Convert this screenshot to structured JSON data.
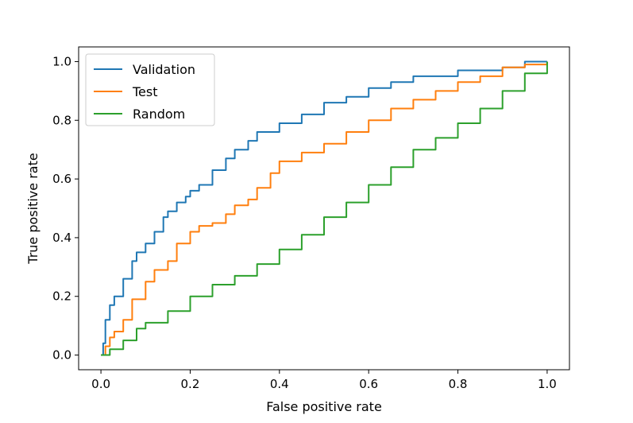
{
  "chart_data": {
    "type": "line",
    "title": "",
    "xlabel": "False positive rate",
    "ylabel": "True positive rate",
    "xlim": [
      -0.05,
      1.05
    ],
    "ylim": [
      -0.05,
      1.05
    ],
    "xticks": [
      0.0,
      0.2,
      0.4,
      0.6,
      0.8,
      1.0
    ],
    "xtick_labels": [
      "0.0",
      "0.2",
      "0.4",
      "0.6",
      "0.8",
      "1.0"
    ],
    "yticks": [
      0.0,
      0.2,
      0.4,
      0.6,
      0.8,
      1.0
    ],
    "ytick_labels": [
      "0.0",
      "0.2",
      "0.4",
      "0.6",
      "0.8",
      "1.0"
    ],
    "grid": false,
    "legend": "upper-left",
    "series": [
      {
        "name": "Validation",
        "color": "#1f77b4",
        "x": [
          0.0,
          0.005,
          0.01,
          0.02,
          0.03,
          0.05,
          0.07,
          0.08,
          0.1,
          0.12,
          0.14,
          0.15,
          0.17,
          0.19,
          0.2,
          0.22,
          0.25,
          0.28,
          0.3,
          0.33,
          0.35,
          0.4,
          0.45,
          0.5,
          0.55,
          0.6,
          0.65,
          0.7,
          0.75,
          0.8,
          0.85,
          0.9,
          0.95,
          1.0
        ],
        "y": [
          0.0,
          0.04,
          0.12,
          0.17,
          0.2,
          0.26,
          0.32,
          0.35,
          0.38,
          0.42,
          0.47,
          0.49,
          0.52,
          0.54,
          0.56,
          0.58,
          0.63,
          0.67,
          0.7,
          0.73,
          0.76,
          0.79,
          0.82,
          0.86,
          0.88,
          0.91,
          0.93,
          0.95,
          0.95,
          0.97,
          0.97,
          0.98,
          1.0,
          1.0
        ]
      },
      {
        "name": "Test",
        "color": "#ff7f0e",
        "x": [
          0.0,
          0.01,
          0.02,
          0.03,
          0.05,
          0.07,
          0.1,
          0.12,
          0.15,
          0.17,
          0.2,
          0.22,
          0.25,
          0.28,
          0.3,
          0.33,
          0.35,
          0.38,
          0.4,
          0.45,
          0.5,
          0.55,
          0.6,
          0.65,
          0.7,
          0.75,
          0.8,
          0.85,
          0.9,
          0.95,
          1.0
        ],
        "y": [
          0.0,
          0.03,
          0.06,
          0.08,
          0.12,
          0.19,
          0.25,
          0.29,
          0.32,
          0.38,
          0.42,
          0.44,
          0.45,
          0.48,
          0.51,
          0.53,
          0.57,
          0.62,
          0.66,
          0.69,
          0.72,
          0.76,
          0.8,
          0.84,
          0.87,
          0.9,
          0.93,
          0.95,
          0.98,
          0.99,
          1.0
        ]
      },
      {
        "name": "Random",
        "color": "#2ca02c",
        "x": [
          0.0,
          0.02,
          0.05,
          0.08,
          0.1,
          0.15,
          0.2,
          0.25,
          0.3,
          0.35,
          0.4,
          0.45,
          0.5,
          0.55,
          0.6,
          0.65,
          0.7,
          0.75,
          0.8,
          0.85,
          0.9,
          0.95,
          1.0
        ],
        "y": [
          0.0,
          0.02,
          0.05,
          0.09,
          0.11,
          0.15,
          0.2,
          0.24,
          0.27,
          0.31,
          0.36,
          0.41,
          0.47,
          0.52,
          0.58,
          0.64,
          0.7,
          0.74,
          0.79,
          0.84,
          0.9,
          0.96,
          1.0
        ]
      }
    ]
  }
}
